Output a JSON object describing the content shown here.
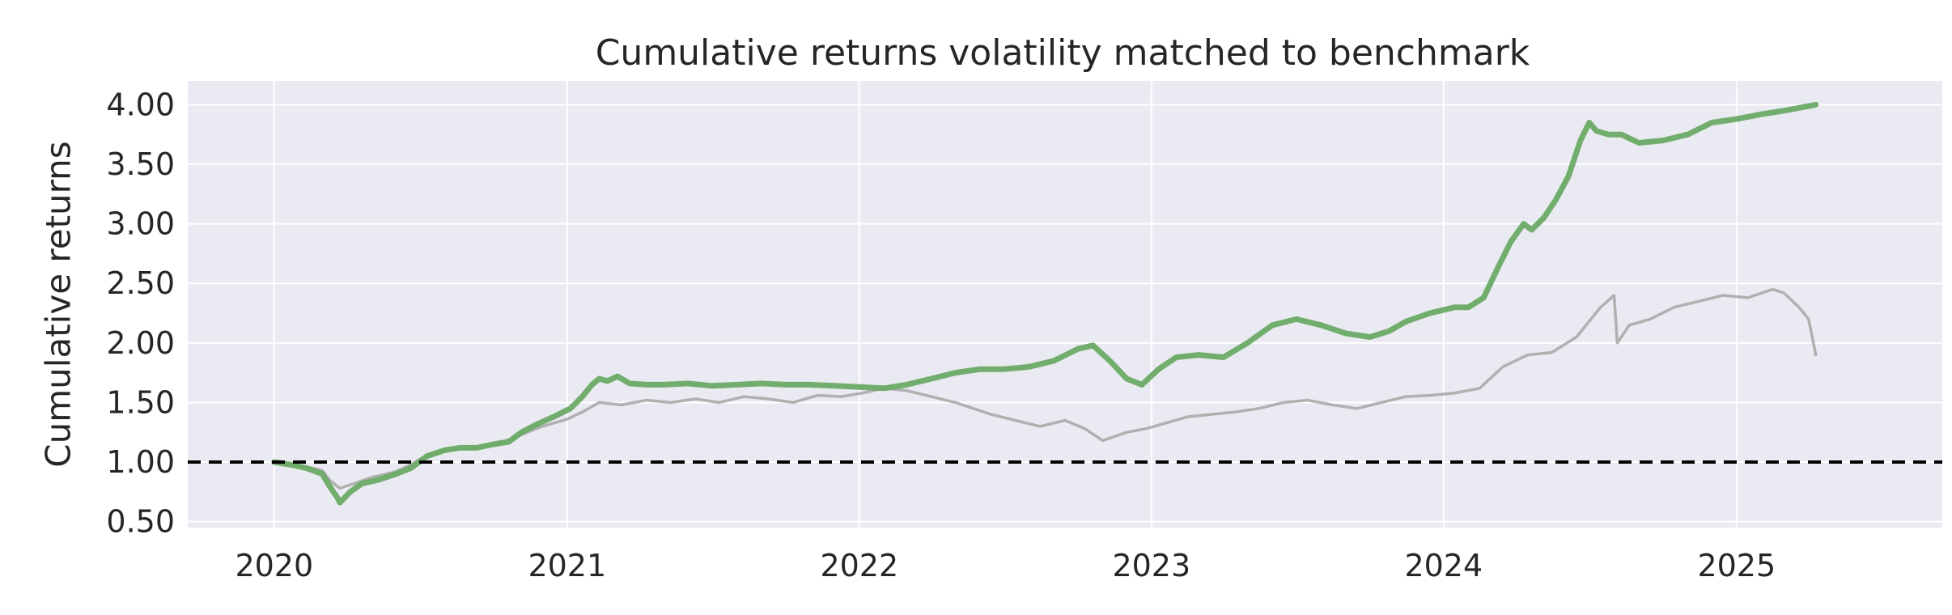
{
  "chart_data": {
    "type": "line",
    "title": "Cumulative returns volatility matched to benchmark",
    "xlabel": "",
    "ylabel": "Cumulative returns",
    "x_ticks": [
      "2020",
      "2021",
      "2022",
      "2023",
      "2024",
      "2025"
    ],
    "y_ticks": [
      "0.50",
      "1.00",
      "1.50",
      "2.00",
      "2.50",
      "3.00",
      "3.50",
      "4.00"
    ],
    "xlim": [
      "2019-09-15",
      "2025-09-15"
    ],
    "ylim": [
      0.45,
      4.2
    ],
    "grid": true,
    "legend": "none",
    "reference_line": {
      "y": 1.0,
      "style": "dashed",
      "color": "#000000"
    },
    "colors": {
      "background": "#eaeaf2",
      "grid": "#ffffff",
      "strategy": "#6aaa64",
      "benchmark": "#aaaaaa",
      "text": "#262626"
    },
    "series": [
      {
        "color": "#6aaa64",
        "x": [
          "2020-01-01",
          "2020-01-20",
          "2020-02-10",
          "2020-03-01",
          "2020-03-10",
          "2020-03-20",
          "2020-03-23",
          "2020-04-05",
          "2020-04-20",
          "2020-05-10",
          "2020-06-01",
          "2020-06-20",
          "2020-07-10",
          "2020-08-01",
          "2020-08-20",
          "2020-09-10",
          "2020-10-01",
          "2020-10-20",
          "2020-11-05",
          "2020-11-25",
          "2020-12-15",
          "2021-01-05",
          "2021-01-20",
          "2021-02-01",
          "2021-02-10",
          "2021-02-20",
          "2021-03-05",
          "2021-03-20",
          "2021-04-10",
          "2021-05-01",
          "2021-06-01",
          "2021-07-01",
          "2021-08-01",
          "2021-09-01",
          "2021-10-01",
          "2021-11-01",
          "2021-12-01",
          "2022-01-01",
          "2022-02-01",
          "2022-03-01",
          "2022-04-01",
          "2022-05-01",
          "2022-06-01",
          "2022-07-01",
          "2022-08-01",
          "2022-09-01",
          "2022-10-01",
          "2022-10-20",
          "2022-11-10",
          "2022-12-01",
          "2022-12-20",
          "2023-01-10",
          "2023-02-01",
          "2023-03-01",
          "2023-04-01",
          "2023-05-01",
          "2023-06-01",
          "2023-07-01",
          "2023-08-01",
          "2023-09-01",
          "2023-10-01",
          "2023-10-25",
          "2023-11-15",
          "2023-12-15",
          "2024-01-15",
          "2024-02-01",
          "2024-02-20",
          "2024-03-10",
          "2024-03-25",
          "2024-04-10",
          "2024-04-20",
          "2024-05-05",
          "2024-05-20",
          "2024-06-05",
          "2024-06-20",
          "2024-07-01",
          "2024-07-10",
          "2024-07-25",
          "2024-08-10",
          "2024-09-01",
          "2024-10-01",
          "2024-11-01",
          "2024-12-01",
          "2025-01-01",
          "2025-02-01",
          "2025-03-01",
          "2025-03-25",
          "2025-04-10"
        ],
        "y": [
          1.0,
          0.98,
          0.95,
          0.9,
          0.8,
          0.7,
          0.66,
          0.75,
          0.82,
          0.85,
          0.9,
          0.95,
          1.05,
          1.1,
          1.12,
          1.12,
          1.15,
          1.17,
          1.25,
          1.32,
          1.38,
          1.45,
          1.55,
          1.65,
          1.7,
          1.68,
          1.72,
          1.66,
          1.65,
          1.65,
          1.66,
          1.64,
          1.65,
          1.66,
          1.65,
          1.65,
          1.64,
          1.63,
          1.62,
          1.65,
          1.7,
          1.75,
          1.78,
          1.78,
          1.8,
          1.85,
          1.95,
          1.98,
          1.85,
          1.7,
          1.65,
          1.78,
          1.88,
          1.9,
          1.88,
          2.0,
          2.15,
          2.2,
          2.15,
          2.08,
          2.05,
          2.1,
          2.18,
          2.25,
          2.3,
          2.3,
          2.38,
          2.65,
          2.85,
          3.0,
          2.95,
          3.05,
          3.2,
          3.4,
          3.7,
          3.85,
          3.78,
          3.75,
          3.75,
          3.68,
          3.7,
          3.75,
          3.85,
          3.88,
          3.92,
          3.95,
          3.98,
          4.0
        ]
      },
      {
        "color": "#aaaaaa",
        "x": [
          "2020-01-01",
          "2020-01-20",
          "2020-02-10",
          "2020-03-01",
          "2020-03-10",
          "2020-03-23",
          "2020-04-10",
          "2020-05-01",
          "2020-06-01",
          "2020-06-20",
          "2020-07-10",
          "2020-08-01",
          "2020-09-01",
          "2020-10-01",
          "2020-11-01",
          "2020-12-01",
          "2021-01-01",
          "2021-01-20",
          "2021-02-10",
          "2021-03-10",
          "2021-04-10",
          "2021-05-10",
          "2021-06-10",
          "2021-07-10",
          "2021-08-10",
          "2021-09-10",
          "2021-10-10",
          "2021-11-10",
          "2021-12-10",
          "2022-01-05",
          "2022-02-01",
          "2022-03-01",
          "2022-04-01",
          "2022-05-01",
          "2022-06-15",
          "2022-07-15",
          "2022-08-15",
          "2022-09-15",
          "2022-10-10",
          "2022-11-01",
          "2022-12-01",
          "2022-12-25",
          "2023-01-15",
          "2023-02-15",
          "2023-03-15",
          "2023-04-15",
          "2023-05-15",
          "2023-06-15",
          "2023-07-15",
          "2023-08-15",
          "2023-09-15",
          "2023-10-15",
          "2023-11-15",
          "2023-12-15",
          "2024-01-15",
          "2024-02-15",
          "2024-03-15",
          "2024-04-15",
          "2024-05-15",
          "2024-06-15",
          "2024-07-15",
          "2024-08-01",
          "2024-08-05",
          "2024-08-20",
          "2024-09-15",
          "2024-10-15",
          "2024-11-15",
          "2024-12-15",
          "2025-01-15",
          "2025-02-15",
          "2025-03-01",
          "2025-03-20",
          "2025-04-01",
          "2025-04-10"
        ],
        "y": [
          1.0,
          0.98,
          0.96,
          0.93,
          0.85,
          0.78,
          0.82,
          0.87,
          0.92,
          0.98,
          1.06,
          1.1,
          1.12,
          1.14,
          1.22,
          1.3,
          1.36,
          1.42,
          1.5,
          1.48,
          1.52,
          1.5,
          1.53,
          1.5,
          1.55,
          1.53,
          1.5,
          1.56,
          1.55,
          1.58,
          1.62,
          1.6,
          1.55,
          1.5,
          1.4,
          1.35,
          1.3,
          1.35,
          1.28,
          1.18,
          1.25,
          1.28,
          1.32,
          1.38,
          1.4,
          1.42,
          1.45,
          1.5,
          1.52,
          1.48,
          1.45,
          1.5,
          1.55,
          1.56,
          1.58,
          1.62,
          1.8,
          1.9,
          1.92,
          2.05,
          2.3,
          2.4,
          2.0,
          2.15,
          2.2,
          2.3,
          2.35,
          2.4,
          2.38,
          2.45,
          2.42,
          2.3,
          2.2,
          1.9
        ]
      }
    ]
  }
}
